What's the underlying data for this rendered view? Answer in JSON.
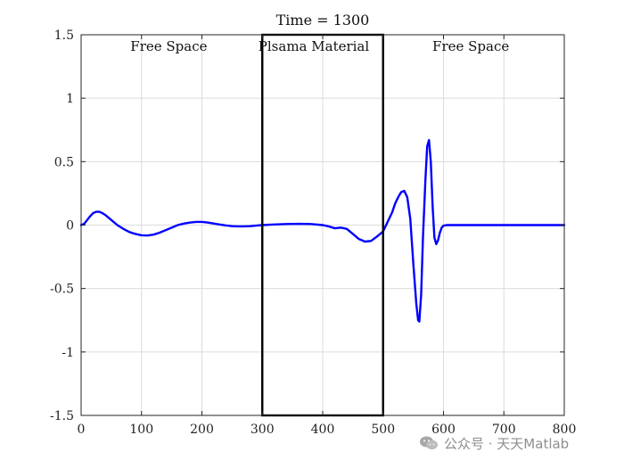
{
  "chart_data": {
    "type": "line",
    "title": "Time = 1300",
    "xlabel": "",
    "ylabel": "",
    "xlim": [
      0,
      800
    ],
    "ylim": [
      -1.5,
      1.5
    ],
    "xticks": [
      0,
      100,
      200,
      300,
      400,
      500,
      600,
      700,
      800
    ],
    "yticks": [
      -1.5,
      -1,
      -0.5,
      0,
      0.5,
      1,
      1.5
    ],
    "xtick_labels": [
      "0",
      "100",
      "200",
      "300",
      "400",
      "500",
      "600",
      "700",
      "800"
    ],
    "ytick_labels": [
      "-1.5",
      "-1",
      "-0.5",
      "0",
      "0.5",
      "1",
      "1.5"
    ],
    "grid": true,
    "line_color": "#0000ff",
    "series": [
      {
        "x": [
          0,
          5,
          10,
          15,
          20,
          25,
          30,
          35,
          40,
          45,
          50,
          60,
          70,
          80,
          90,
          100,
          110,
          120,
          130,
          140,
          150,
          160,
          170,
          180,
          190,
          200,
          210,
          220,
          230,
          240,
          250,
          260,
          270,
          280,
          290,
          300,
          320,
          340,
          360,
          380,
          400,
          410,
          420,
          430,
          440,
          450,
          460,
          470,
          480,
          490,
          500,
          505,
          510,
          515,
          520,
          525,
          530,
          535,
          540,
          545,
          550,
          555,
          558,
          560,
          563,
          566,
          570,
          573,
          576,
          579,
          582,
          585,
          588,
          591,
          594,
          597,
          600,
          605,
          610,
          620,
          640,
          660,
          700,
          750,
          800
        ],
        "y": [
          0,
          0.01,
          0.04,
          0.07,
          0.095,
          0.105,
          0.105,
          0.095,
          0.08,
          0.06,
          0.04,
          0.0,
          -0.03,
          -0.055,
          -0.07,
          -0.08,
          -0.082,
          -0.075,
          -0.06,
          -0.04,
          -0.02,
          0.0,
          0.012,
          0.02,
          0.025,
          0.025,
          0.02,
          0.012,
          0.004,
          -0.003,
          -0.008,
          -0.01,
          -0.01,
          -0.008,
          -0.004,
          0.0,
          0.005,
          0.008,
          0.01,
          0.008,
          0.0,
          -0.01,
          -0.025,
          -0.02,
          -0.03,
          -0.07,
          -0.11,
          -0.13,
          -0.125,
          -0.09,
          -0.05,
          0.0,
          0.05,
          0.1,
          0.17,
          0.22,
          0.26,
          0.27,
          0.22,
          0.05,
          -0.3,
          -0.62,
          -0.75,
          -0.76,
          -0.55,
          -0.1,
          0.35,
          0.62,
          0.67,
          0.5,
          0.15,
          -0.1,
          -0.15,
          -0.12,
          -0.06,
          -0.02,
          -0.005,
          0.0,
          0.0,
          0.0,
          0.0,
          0.0,
          0.0,
          0.0,
          0.0
        ]
      }
    ],
    "region_box": {
      "x_start": 300,
      "x_end": 500
    },
    "annotations": [
      {
        "text": "Free Space",
        "x": 160
      },
      {
        "text": "Plsama Material",
        "x": 400
      },
      {
        "text": "Free Space",
        "x": 660
      }
    ]
  },
  "watermark": {
    "text": "公众号 · 天天Matlab",
    "icon": "wechat-icon"
  }
}
